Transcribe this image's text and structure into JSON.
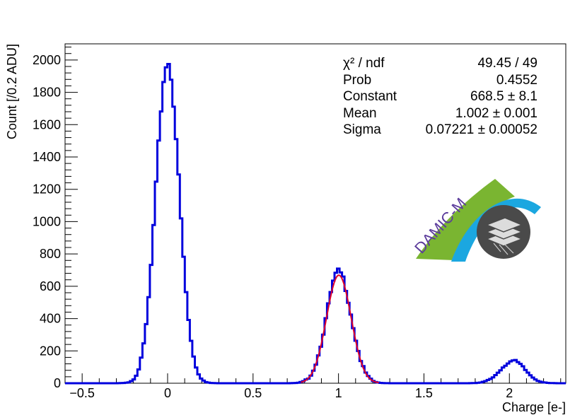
{
  "chart_data": {
    "type": "histogram",
    "xlabel": "Charge [e-]",
    "ylabel": "Count [/0.2 ADU]",
    "xlim": [
      -0.6,
      2.33
    ],
    "ylim": [
      0,
      2100
    ],
    "xticks": [
      -0.5,
      0,
      0.5,
      1,
      1.5,
      2
    ],
    "xtick_labels": [
      "−0.5",
      "0",
      "0.5",
      "1",
      "1.5",
      "2"
    ],
    "yticks": [
      0,
      200,
      400,
      600,
      800,
      1000,
      1200,
      1400,
      1600,
      1800,
      2000
    ],
    "ytick_labels": [
      "0",
      "200",
      "400",
      "600",
      "800",
      "1000",
      "1200",
      "1400",
      "1600",
      "1800",
      "2000"
    ],
    "grid": false,
    "series": [
      {
        "kind": "histogram",
        "color": "#0000dd",
        "peaks": [
          {
            "mean": 0.0,
            "sigma": 0.068,
            "height": 1985
          },
          {
            "mean": 1.002,
            "sigma": 0.0722,
            "height": 690
          },
          {
            "mean": 2.02,
            "sigma": 0.072,
            "height": 138
          }
        ],
        "bin_width": 0.0146
      },
      {
        "kind": "fit",
        "color": "#e0002a",
        "function": "gaussian",
        "constant": 668.5,
        "mean": 1.002,
        "sigma": 0.07221,
        "range": [
          0.78,
          1.24
        ]
      }
    ],
    "stats_box": [
      {
        "key": "χ² / ndf",
        "value": "49.45 / 49"
      },
      {
        "key": "Prob",
        "value": "0.4552"
      },
      {
        "key": "Constant",
        "value": "668.5 ± 8.1"
      },
      {
        "key": "Mean",
        "value": "1.002 ± 0.001"
      },
      {
        "key": "Sigma",
        "value": "0.07221 ± 0.00052"
      }
    ]
  },
  "logo": {
    "text": "DAMIC-M",
    "colors": {
      "green": "#7ab531",
      "blue": "#1ba7e0",
      "purple": "#5b3b9b",
      "gray": "#4a4a4a"
    }
  }
}
